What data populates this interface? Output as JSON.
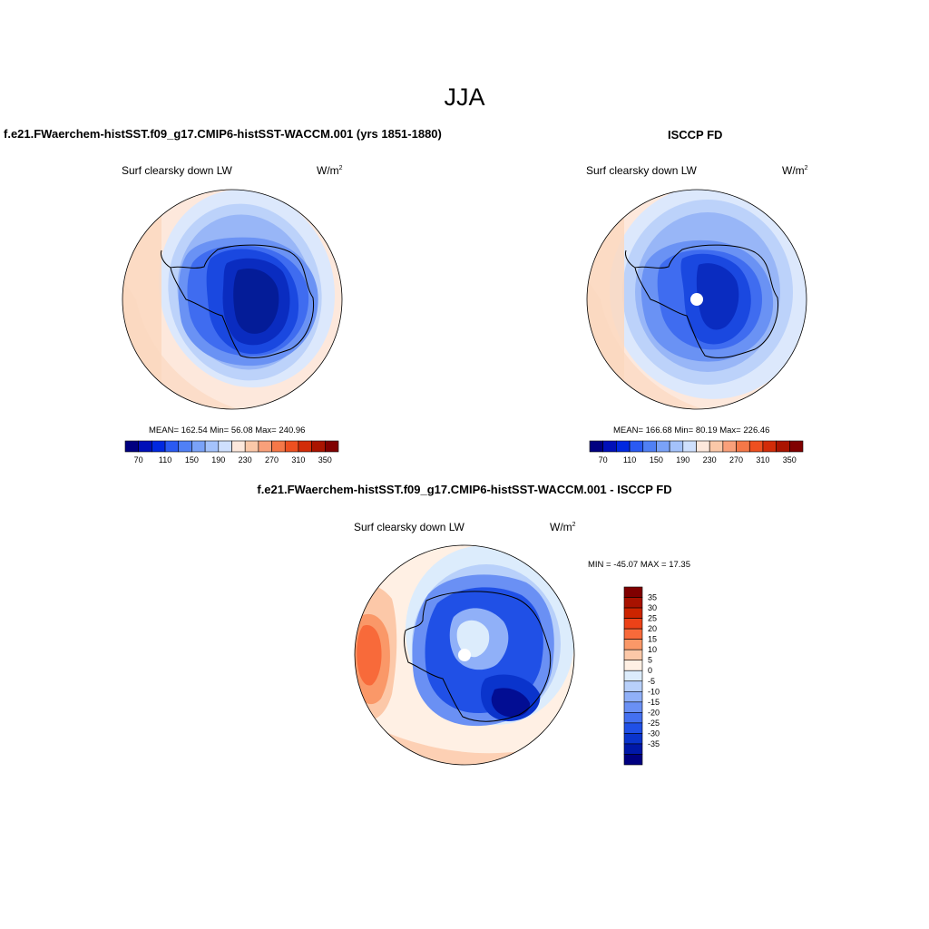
{
  "figure": {
    "season": "JJA",
    "variable": "Surf clearsky down LW",
    "units": "W/m",
    "units_superscript": "2"
  },
  "panels": {
    "model": {
      "title": "f.e21.FWaerchem-histSST.f09_g17.CMIP6-histSST-WACCM.001 (yrs 1851-1880)",
      "stats": "MEAN= 162.54  Min=  56.08  Max= 240.96"
    },
    "obs": {
      "title": "ISCCP FD",
      "stats": "MEAN= 166.68  Min=  80.19  Max= 226.46"
    },
    "diff": {
      "title": "f.e21.FWaerchem-histSST.f09_g17.CMIP6-histSST-WACCM.001 - ISCCP FD",
      "stats": "MIN = -45.07 MAX =  17.35"
    }
  },
  "colorbars": {
    "abs_colors": [
      "#000080",
      "#0010b8",
      "#0028e0",
      "#2a5af2",
      "#5080f5",
      "#7aa2f8",
      "#a4c2fb",
      "#cfe0fd",
      "#fde8dc",
      "#fbc8a8",
      "#f9a07a",
      "#f57848",
      "#ee5020",
      "#d22c08",
      "#aa1400",
      "#800000"
    ],
    "abs_tick_labels": [
      "70",
      "110",
      "150",
      "190",
      "230",
      "270",
      "310",
      "350"
    ],
    "diff_colors": [
      "#800000",
      "#a81200",
      "#cc2400",
      "#ec4218",
      "#f86a3a",
      "#fa9868",
      "#fcc8a8",
      "#fff0e4",
      "#dcecfc",
      "#b8d0fa",
      "#90b0f8",
      "#6a90f4",
      "#4470f0",
      "#2050e6",
      "#0a34cc",
      "#0018a8",
      "#000080"
    ],
    "diff_tick_labels": [
      "35",
      "30",
      "25",
      "20",
      "15",
      "10",
      "5",
      "0",
      "-5",
      "-10",
      "-15",
      "-20",
      "-25",
      "-30",
      "-35"
    ]
  },
  "chart_data": [
    {
      "type": "heatmap",
      "title": "f.e21.FWaerchem-histSST.f09_g17.CMIP6-histSST-WACCM.001 (yrs 1851-1880)",
      "subtitle": "Surf clearsky down LW",
      "units": "W/m2",
      "projection": "south polar stereographic",
      "stats": {
        "mean": 162.54,
        "min": 56.08,
        "max": 240.96
      },
      "colorbar_levels": [
        70,
        110,
        150,
        190,
        230,
        270,
        310,
        350
      ]
    },
    {
      "type": "heatmap",
      "title": "ISCCP FD",
      "subtitle": "Surf clearsky down LW",
      "units": "W/m2",
      "projection": "south polar stereographic",
      "stats": {
        "mean": 166.68,
        "min": 80.19,
        "max": 226.46
      },
      "colorbar_levels": [
        70,
        110,
        150,
        190,
        230,
        270,
        310,
        350
      ]
    },
    {
      "type": "heatmap",
      "title": "f.e21.FWaerchem-histSST.f09_g17.CMIP6-histSST-WACCM.001 - ISCCP FD",
      "subtitle": "Surf clearsky down LW",
      "units": "W/m2",
      "projection": "south polar stereographic",
      "stats": {
        "min": -45.07,
        "max": 17.35
      },
      "colorbar_levels": [
        35,
        30,
        25,
        20,
        15,
        10,
        5,
        0,
        -5,
        -10,
        -15,
        -20,
        -25,
        -30,
        -35
      ]
    }
  ]
}
